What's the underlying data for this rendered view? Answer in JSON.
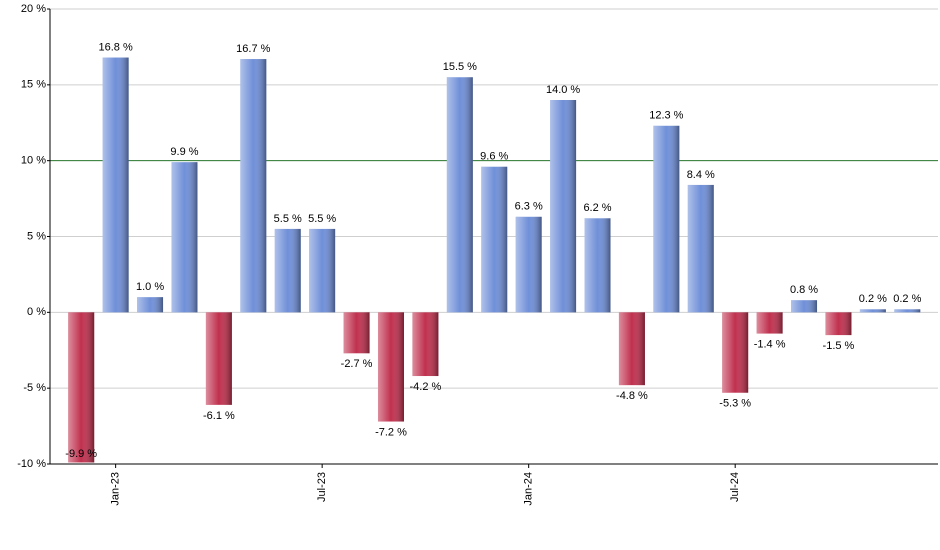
{
  "chart_data": {
    "type": "bar",
    "categories": [
      null,
      "Jan-23",
      null,
      null,
      null,
      null,
      null,
      "Jul-23",
      null,
      null,
      null,
      null,
      null,
      "Jan-24",
      null,
      null,
      null,
      null,
      null,
      "Jul-24",
      null,
      null,
      null,
      null,
      null
    ],
    "values": [
      -9.9,
      16.8,
      1.0,
      9.9,
      -6.1,
      16.7,
      5.5,
      5.5,
      -2.7,
      -7.2,
      -4.2,
      15.5,
      9.6,
      6.3,
      14.0,
      6.2,
      -4.8,
      12.3,
      8.4,
      -5.3,
      -1.4,
      0.8,
      -1.5,
      0.2,
      0.2
    ],
    "value_labels": [
      "-9.9 %",
      "16.8 %",
      "1.0 %",
      "9.9 %",
      "-6.1 %",
      "16.7 %",
      "5.5 %",
      "5.5 %",
      "-2.7 %",
      "-7.2 %",
      "-4.2 %",
      "15.5 %",
      "9.6 %",
      "6.3 %",
      "14.0 %",
      "6.2 %",
      "-4.8 %",
      "12.3 %",
      "8.4 %",
      "-5.3 %",
      "-1.4 %",
      "0.8 %",
      "-1.5 %",
      "0.2 %",
      "0.2 %"
    ],
    "colors": {
      "positive": "#6f8fd8",
      "negative": "#c0304e"
    },
    "ylim": [
      -10,
      20
    ],
    "yticks": [
      {
        "value": -10,
        "label": "-10 %"
      },
      {
        "value": -5,
        "label": "-5 %"
      },
      {
        "value": 0,
        "label": "0 %"
      },
      {
        "value": 5,
        "label": "5 %"
      },
      {
        "value": 10,
        "label": "10 %"
      },
      {
        "value": 15,
        "label": "15 %"
      },
      {
        "value": 20,
        "label": "20 %"
      }
    ],
    "grid": true,
    "reference_line": {
      "value": 10,
      "color": "#2e7d32"
    }
  }
}
